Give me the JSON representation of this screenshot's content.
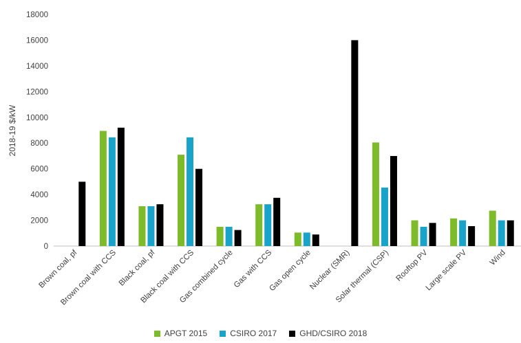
{
  "chart_data": {
    "type": "bar",
    "ylabel": "2018-19 $/kW",
    "ylim": [
      0,
      18000
    ],
    "yticks": [
      0,
      2000,
      4000,
      6000,
      8000,
      10000,
      12000,
      14000,
      16000,
      18000
    ],
    "grid": false,
    "legend_position": "bottom",
    "categories": [
      "Brown coal, pf",
      "Brown coal with CCS",
      "Black coal, pf",
      "Black coal with CCS",
      "Gas combined cycle",
      "Gas with CCS",
      "Gas open cycle",
      "Nuclear (SMR)",
      "Solar thermal (CSP)",
      "Rooftop PV",
      "Large scale PV",
      "Wind"
    ],
    "series": [
      {
        "name": "APGT 2015",
        "color": "#7dbb2b",
        "values": [
          null,
          8950,
          3100,
          7100,
          1500,
          3250,
          1050,
          null,
          8050,
          2000,
          2150,
          2750
        ]
      },
      {
        "name": "CSIRO 2017",
        "color": "#1aa3c8",
        "values": [
          null,
          8450,
          3100,
          8450,
          1500,
          3250,
          1050,
          null,
          4550,
          1500,
          2000,
          2000
        ]
      },
      {
        "name": "GHD/CSIRO 2018",
        "color": "#000000",
        "values": [
          5000,
          9200,
          3250,
          6000,
          1250,
          3750,
          900,
          16000,
          7000,
          1800,
          1550,
          2000
        ]
      }
    ]
  }
}
